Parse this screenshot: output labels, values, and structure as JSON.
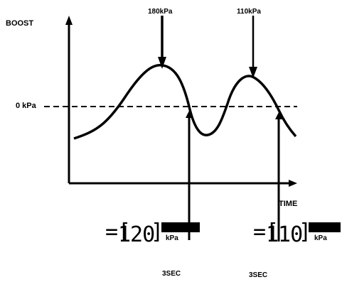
{
  "labels": {
    "y_axis": "BOOST",
    "x_axis": "TIME",
    "reference_line": "0 kPa",
    "peak1_callout": "180kPa",
    "peak2_callout": "110kPa",
    "unit_bottom_1": "3SEC",
    "unit_bottom_2": "3SEC"
  },
  "displays": [
    {
      "value": "120",
      "unit_top": "",
      "unit_bottom": "kPa"
    },
    {
      "value": "110",
      "unit_top": "",
      "unit_bottom": "kPa"
    }
  ],
  "colors": {
    "ink": "#000000",
    "background": "#ffffff"
  }
}
